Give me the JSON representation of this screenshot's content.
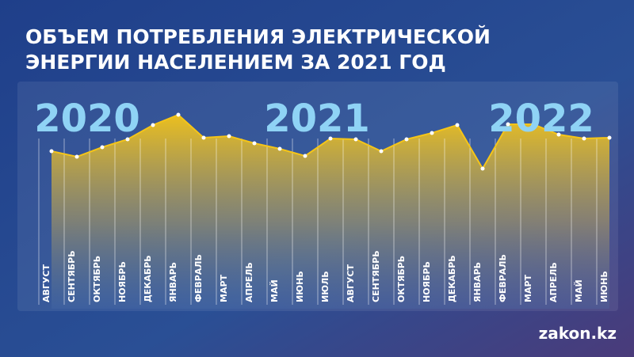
{
  "chart_data": {
    "type": "area",
    "title": [
      "ОБЪЕМ ПОТРЕБЛЕНИЯ ЭЛЕКТРИЧЕСКОЙ",
      "ЭНЕРГИИ НАСЕЛЕНИЕМ ЗА 2021 ГОД"
    ],
    "annotations": [
      "2020",
      "2021",
      "2022"
    ],
    "source": "zakon.kz",
    "categories": [
      "АВГУСТ",
      "СЕНТЯБРЬ",
      "ОКТЯБРЬ",
      "НОЯБРЬ",
      "ДЕКАБРЬ",
      "ЯНВАРЬ",
      "ФЕВРАЛЬ",
      "МАРТ",
      "АПРЕЛЬ",
      "МАЙ",
      "ИЮНЬ",
      "ИЮЛЬ",
      "АВГУСТ",
      "СЕНТЯБРЬ",
      "ОКТЯБРЬ",
      "НОЯБРЬ",
      "ДЕКАБРЬ",
      "ЯНВАРЬ",
      "ФЕВРАЛЬ",
      "МАРТ",
      "АПРЕЛЬ",
      "МАЙ",
      "ИЮНЬ"
    ],
    "values": [
      199,
      192,
      204,
      214,
      232,
      245,
      216,
      218,
      209,
      202,
      193,
      215,
      214,
      199,
      214,
      222,
      232,
      177,
      233,
      233,
      220,
      215,
      216
    ],
    "color": "#f5c518",
    "ylim": [
      0,
      260
    ]
  }
}
